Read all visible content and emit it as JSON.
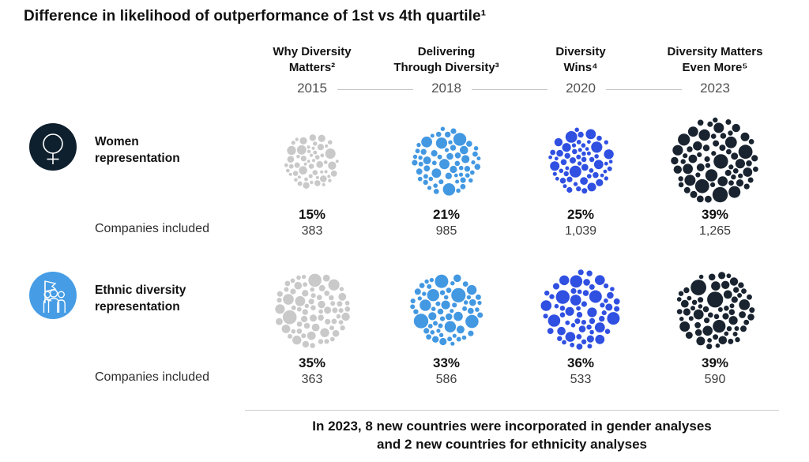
{
  "title": "Difference in likelihood of outperformance of 1st vs 4th quartile¹",
  "columns": [
    {
      "report": "Why Diversity\nMatters²",
      "year": "2015"
    },
    {
      "report": "Delivering\nThrough Diversity³",
      "year": "2018"
    },
    {
      "report": "Diversity\nWins⁴",
      "year": "2020"
    },
    {
      "report": "Diversity Matters\nEven More⁵",
      "year": "2023"
    }
  ],
  "rows": [
    {
      "label": "Women\nrepresentation",
      "icon": "female-symbol-icon",
      "icon_bg": "#0e1f2d",
      "companies_label": "Companies included",
      "cells": [
        {
          "pct": "15%",
          "count": "383",
          "color": "#c9c9c9",
          "diameter": 72,
          "seed": 3
        },
        {
          "pct": "21%",
          "count": "985",
          "color": "#4398e2",
          "diameter": 88,
          "seed": 7
        },
        {
          "pct": "25%",
          "count": "1,039",
          "color": "#3050e2",
          "diameter": 86,
          "seed": 12
        },
        {
          "pct": "39%",
          "count": "1,265",
          "color": "#1a2430",
          "diameter": 112,
          "seed": 19
        }
      ]
    },
    {
      "label": "Ethnic diversity\nrepresentation",
      "icon": "people-with-flag-icon",
      "icon_bg": "#469de5",
      "companies_label": "Companies included",
      "cells": [
        {
          "pct": "35%",
          "count": "363",
          "color": "#c9c9c9",
          "diameter": 98,
          "seed": 23
        },
        {
          "pct": "33%",
          "count": "586",
          "color": "#4398e2",
          "diameter": 94,
          "seed": 31
        },
        {
          "pct": "36%",
          "count": "533",
          "color": "#3050e2",
          "diameter": 102,
          "seed": 41
        },
        {
          "pct": "39%",
          "count": "590",
          "color": "#1a2430",
          "diameter": 102,
          "seed": 47
        }
      ]
    }
  ],
  "footer": "In 2023, 8 new countries were incorporated in gender analyses\nand 2 new countries for ethnicity analyses",
  "colors": {
    "gray_2015": "#c9c9c9",
    "light_blue_2018": "#4398e2",
    "royal_blue_2020": "#3050e2",
    "dark_navy_2023": "#1a2430",
    "year_text": "#525252",
    "timeline_line": "#c3c3c3"
  },
  "chart_data": {
    "type": "bubble",
    "title": "Difference in likelihood of outperformance of 1st vs 4th quartile",
    "categories": [
      "Why Diversity Matters (2015)",
      "Delivering Through Diversity (2018)",
      "Diversity Wins (2020)",
      "Diversity Matters Even More (2023)"
    ],
    "series": [
      {
        "name": "Women representation",
        "values_pct": [
          15,
          21,
          25,
          39
        ],
        "companies_included": [
          383,
          985,
          1039,
          1265
        ]
      },
      {
        "name": "Ethnic diversity representation",
        "values_pct": [
          35,
          33,
          36,
          39
        ],
        "companies_included": [
          363,
          586,
          533,
          590
        ]
      }
    ],
    "annotation": "In 2023, 8 new countries were incorporated in gender analyses and 2 new countries for ethnicity analyses"
  }
}
